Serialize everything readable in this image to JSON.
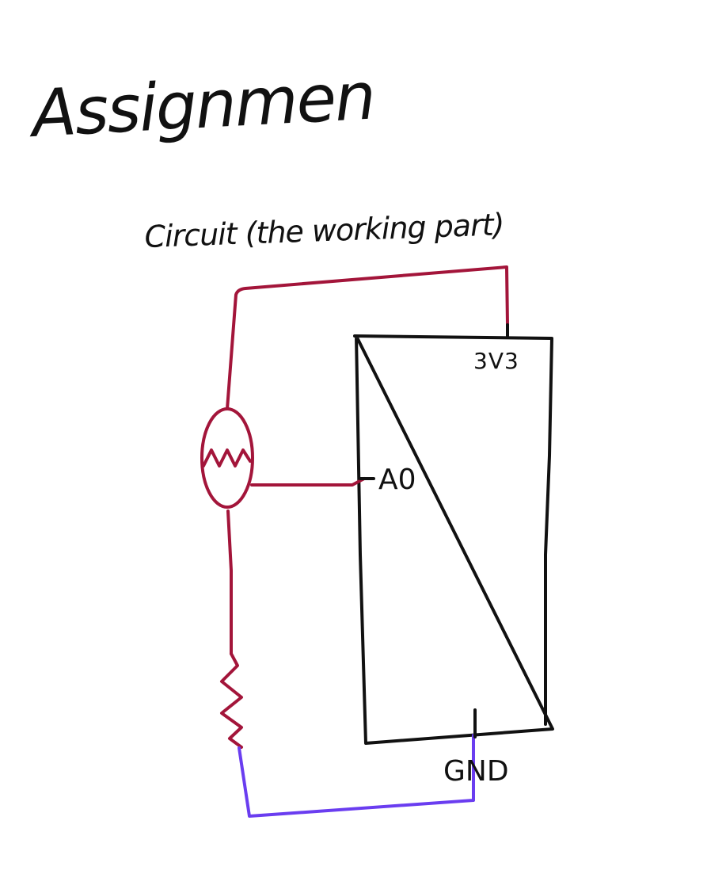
{
  "title": "Assignmen",
  "subtitle": "Circuit (the working part)",
  "board": {
    "power_pin_label": "3V3",
    "analog_pin_label": "A0",
    "ground_pin_label": "GND"
  },
  "colors": {
    "background": "#ffffff",
    "ink": "#111111",
    "power_wire": "#a3153a",
    "ground_wire": "#6a3df0"
  },
  "components": {
    "sensor_icon": "photoresistor-icon",
    "resistor_icon": "resistor-icon"
  }
}
